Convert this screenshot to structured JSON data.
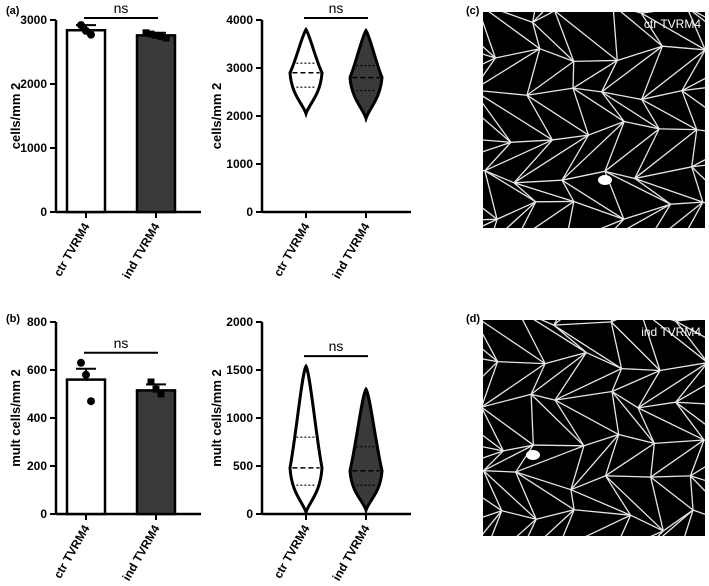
{
  "panels": {
    "a": "(a)",
    "b": "(b)",
    "c": "(c)",
    "d": "(d)"
  },
  "chart_data": [
    {
      "id": "a-bar",
      "type": "bar",
      "categories": [
        "ctr TVRM4",
        "ind TVRM4"
      ],
      "values": [
        2840,
        2760
      ],
      "errors": [
        80,
        40
      ],
      "points": [
        [
          2920,
          2830,
          2770
        ],
        [
          2800,
          2780,
          2760,
          2740,
          2720
        ]
      ],
      "ylabel": "cells/mm 2",
      "ylim": [
        0,
        3000
      ],
      "yticks": [
        0,
        1000,
        2000,
        3000
      ],
      "annotation": "ns",
      "colors": [
        "#ffffff",
        "#3a3a3a"
      ]
    },
    {
      "id": "a-violin",
      "type": "violin",
      "categories": [
        "ctr TVRM4",
        "ind TVRM4"
      ],
      "distributions": [
        {
          "min": 2050,
          "max": 3800,
          "q1": 2600,
          "median": 2900,
          "q3": 3100
        },
        {
          "min": 1950,
          "max": 3780,
          "q1": 2530,
          "median": 2800,
          "q3": 3050
        }
      ],
      "ylabel": "cells/mm 2",
      "ylim": [
        0,
        4000
      ],
      "yticks": [
        0,
        1000,
        2000,
        3000,
        4000
      ],
      "annotation": "ns",
      "colors": [
        "#ffffff",
        "#3a3a3a"
      ]
    },
    {
      "id": "b-bar",
      "type": "bar",
      "categories": [
        "ctr TVRM4",
        "ind TVRM4"
      ],
      "values": [
        560,
        515
      ],
      "errors": [
        45,
        25
      ],
      "points": [
        [
          630,
          580,
          470
        ],
        [
          550,
          520,
          500
        ]
      ],
      "ylabel": "mult cells/mm 2",
      "ylim": [
        0,
        800
      ],
      "yticks": [
        0,
        200,
        400,
        600,
        800
      ],
      "annotation": "ns",
      "colors": [
        "#ffffff",
        "#3a3a3a"
      ]
    },
    {
      "id": "b-violin",
      "type": "violin",
      "categories": [
        "ctr TVRM4",
        "ind TVRM4"
      ],
      "distributions": [
        {
          "min": 20,
          "max": 1540,
          "q1": 300,
          "median": 480,
          "q3": 800
        },
        {
          "min": 40,
          "max": 1300,
          "q1": 300,
          "median": 450,
          "q3": 700
        }
      ],
      "ylabel": "mult cells/mm 2",
      "ylim": [
        0,
        2000
      ],
      "yticks": [
        0,
        500,
        1000,
        1500,
        2000
      ],
      "annotation": "ns",
      "colors": [
        "#ffffff",
        "#3a3a3a"
      ]
    }
  ],
  "images": [
    {
      "id": "c",
      "label": "ctr TVRM4"
    },
    {
      "id": "d",
      "label": "ind TVRM4"
    }
  ]
}
